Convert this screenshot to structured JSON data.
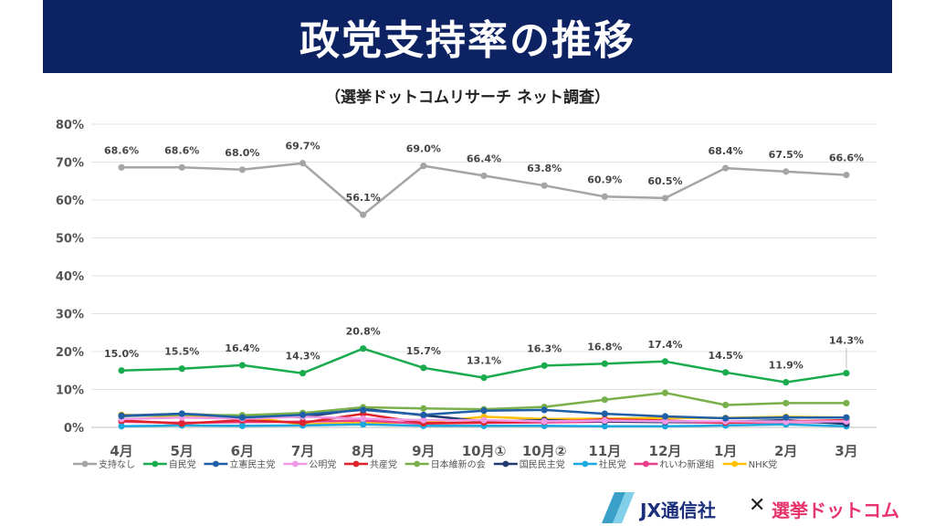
{
  "title": "政党支持率の推移",
  "subtitle": "（選挙ドットコムリサーチ ネット調査）",
  "logos": {
    "jx": "JX通信社",
    "cross": "✕",
    "senkyo": "選挙ドットコム"
  },
  "chart_data": {
    "type": "line",
    "categories": [
      "4月",
      "5月",
      "6月",
      "7月",
      "8月",
      "9月",
      "10月①",
      "10月②",
      "11月",
      "12月",
      "1月",
      "2月",
      "3月"
    ],
    "ylim": [
      0,
      80
    ],
    "yticks": [
      "0%",
      "10%",
      "20%",
      "30%",
      "40%",
      "50%",
      "60%",
      "70%",
      "80%"
    ],
    "grid": true,
    "legend_position": "bottom",
    "series": [
      {
        "name": "支持なし",
        "color": "#a5a5a5",
        "values": [
          68.6,
          68.6,
          68.0,
          69.7,
          56.1,
          69.0,
          66.4,
          63.8,
          60.9,
          60.5,
          68.4,
          67.5,
          66.6
        ],
        "labels": [
          "68.6%",
          "68.6%",
          "68.0%",
          "69.7%",
          "56.1%",
          "69.0%",
          "66.4%",
          "63.8%",
          "60.9%",
          "60.5%",
          "68.4%",
          "67.5%",
          "66.6%"
        ]
      },
      {
        "name": "自民党",
        "color": "#1aab4f",
        "values": [
          15.0,
          15.5,
          16.4,
          14.3,
          20.8,
          15.7,
          13.1,
          16.3,
          16.8,
          17.4,
          14.5,
          11.9,
          14.3
        ],
        "labels": [
          "15.0%",
          "15.5%",
          "16.4%",
          "14.3%",
          "20.8%",
          "15.7%",
          "13.1%",
          "16.3%",
          "16.8%",
          "17.4%",
          "14.5%",
          "11.9%",
          "14.3%"
        ]
      },
      {
        "name": "立憲民主党",
        "color": "#1f5fa8",
        "values": [
          3.0,
          3.6,
          2.6,
          3.3,
          4.6,
          3.3,
          4.4,
          4.6,
          3.6,
          2.9,
          2.4,
          2.6,
          2.6
        ]
      },
      {
        "name": "公明党",
        "color": "#f09ae6",
        "values": [
          2.2,
          2.6,
          2.3,
          2.8,
          2.3,
          1.9,
          1.9,
          1.6,
          1.8,
          1.6,
          1.6,
          1.5,
          1.6
        ]
      },
      {
        "name": "共産党",
        "color": "#e0222a",
        "values": [
          1.8,
          1.0,
          1.9,
          1.2,
          3.6,
          1.1,
          1.3,
          1.5,
          2.1,
          1.8,
          1.3,
          1.6,
          1.9
        ]
      },
      {
        "name": "日本維新の会",
        "color": "#79b04b",
        "values": [
          3.0,
          3.3,
          3.2,
          3.8,
          5.3,
          5.0,
          4.8,
          5.4,
          7.3,
          9.1,
          5.9,
          6.4,
          6.4
        ]
      },
      {
        "name": "国民民主党",
        "color": "#223a70",
        "values": [
          3.1,
          3.6,
          2.9,
          2.7,
          4.9,
          3.2,
          1.6,
          1.9,
          1.6,
          1.4,
          1.5,
          1.9,
          0.9
        ]
      },
      {
        "name": "社民党",
        "color": "#1ba8df",
        "values": [
          0.3,
          0.5,
          0.4,
          0.5,
          0.8,
          0.4,
          0.4,
          0.4,
          0.3,
          0.3,
          0.5,
          0.8,
          0.3
        ]
      },
      {
        "name": "れいわ新選組",
        "color": "#e83e8c",
        "values": [
          1.5,
          1.2,
          1.4,
          1.5,
          1.8,
          1.0,
          1.2,
          1.3,
          1.5,
          1.4,
          1.2,
          1.4,
          1.3
        ]
      },
      {
        "name": "NHK党",
        "color": "#ffc000",
        "values": [
          3.3,
          2.8,
          3.0,
          0.8,
          1.2,
          1.3,
          2.8,
          2.2,
          2.3,
          2.5,
          2.5,
          2.8,
          2.6
        ]
      }
    ]
  }
}
